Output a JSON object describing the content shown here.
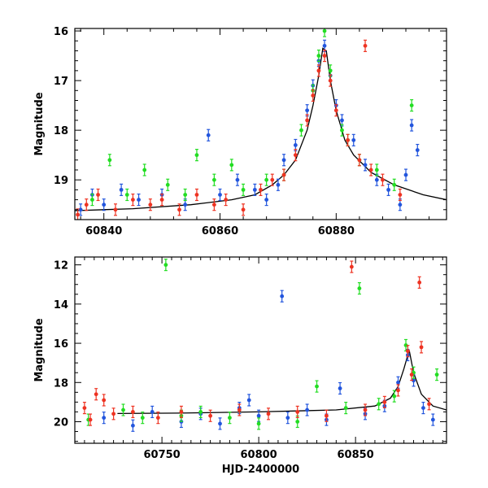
{
  "chart_data": [
    {
      "type": "scatter",
      "panel": "top",
      "xlabel": "",
      "ylabel": "Magnitude",
      "xlim": [
        60835,
        60899
      ],
      "ylim": [
        19.8,
        15.95
      ],
      "y_inverted": true,
      "xticks": [
        60840,
        60860,
        60880
      ],
      "yticks": [
        16,
        17,
        18,
        19
      ],
      "series": [
        {
          "color": "#2255dd",
          "values": [
            [
              60836,
              19.6
            ],
            [
              60838,
              19.3
            ],
            [
              60840,
              19.5
            ],
            [
              60843,
              19.2
            ],
            [
              60846,
              19.4
            ],
            [
              60850,
              19.3
            ],
            [
              60854,
              19.5
            ],
            [
              60858,
              18.1
            ],
            [
              60860,
              19.3
            ],
            [
              60863,
              19.0
            ],
            [
              60866,
              19.2
            ],
            [
              60868,
              19.4
            ],
            [
              60870,
              19.1
            ],
            [
              60871,
              18.6
            ],
            [
              60873,
              18.3
            ],
            [
              60875,
              17.6
            ],
            [
              60876,
              17.1
            ],
            [
              60877,
              16.6
            ],
            [
              60878,
              16.3
            ],
            [
              60879,
              16.9
            ],
            [
              60880,
              17.5
            ],
            [
              60881,
              17.8
            ],
            [
              60883,
              18.2
            ],
            [
              60885,
              18.7
            ],
            [
              60887,
              19.0
            ],
            [
              60889,
              19.2
            ],
            [
              60891,
              19.5
            ],
            [
              60892,
              18.9
            ],
            [
              60893,
              17.9
            ],
            [
              60894,
              18.4
            ]
          ]
        },
        {
          "color": "#22dd22",
          "values": [
            [
              60838,
              19.4
            ],
            [
              60841,
              18.6
            ],
            [
              60844,
              19.3
            ],
            [
              60847,
              18.8
            ],
            [
              60851,
              19.1
            ],
            [
              60854,
              19.3
            ],
            [
              60856,
              18.5
            ],
            [
              60859,
              19.0
            ],
            [
              60862,
              18.7
            ],
            [
              60864,
              19.2
            ],
            [
              60868,
              19.0
            ],
            [
              60871,
              18.9
            ],
            [
              60874,
              18.0
            ],
            [
              60876,
              17.2
            ],
            [
              60877,
              16.5
            ],
            [
              60878,
              16.0
            ],
            [
              60879,
              16.8
            ],
            [
              60881,
              18.0
            ],
            [
              60882,
              18.2
            ],
            [
              60884,
              18.6
            ],
            [
              60887,
              18.8
            ],
            [
              60890,
              19.1
            ],
            [
              60893,
              17.5
            ]
          ]
        },
        {
          "color": "#ee3322",
          "values": [
            [
              60835.5,
              19.7
            ],
            [
              60837,
              19.5
            ],
            [
              60839,
              19.3
            ],
            [
              60842,
              19.6
            ],
            [
              60845,
              19.4
            ],
            [
              60848,
              19.5
            ],
            [
              60850,
              19.4
            ],
            [
              60853,
              19.6
            ],
            [
              60856,
              19.3
            ],
            [
              60859,
              19.5
            ],
            [
              60861,
              19.4
            ],
            [
              60864,
              19.6
            ],
            [
              60867,
              19.2
            ],
            [
              60869,
              19.0
            ],
            [
              60871,
              18.9
            ],
            [
              60873,
              18.5
            ],
            [
              60875,
              17.8
            ],
            [
              60876,
              17.3
            ],
            [
              60877,
              16.8
            ],
            [
              60878,
              16.5
            ],
            [
              60879,
              17.0
            ],
            [
              60880,
              17.6
            ],
            [
              60882,
              18.2
            ],
            [
              60884,
              18.6
            ],
            [
              60885,
              16.3
            ],
            [
              60886,
              18.8
            ],
            [
              60888,
              19.0
            ],
            [
              60891,
              19.3
            ]
          ]
        }
      ],
      "model_curve": [
        [
          60835,
          19.62
        ],
        [
          60845,
          19.58
        ],
        [
          60855,
          19.5
        ],
        [
          60862,
          19.4
        ],
        [
          60866,
          19.3
        ],
        [
          60869,
          19.1
        ],
        [
          60871,
          18.9
        ],
        [
          60873,
          18.6
        ],
        [
          60875,
          18.0
        ],
        [
          60876,
          17.5
        ],
        [
          60877,
          16.9
        ],
        [
          60877.7,
          16.35
        ],
        [
          60878.3,
          16.4
        ],
        [
          60879,
          17.0
        ],
        [
          60880,
          17.6
        ],
        [
          60881.5,
          18.2
        ],
        [
          60883,
          18.5
        ],
        [
          60886,
          18.85
        ],
        [
          60890,
          19.1
        ],
        [
          60895,
          19.3
        ],
        [
          60899,
          19.4
        ]
      ]
    },
    {
      "type": "scatter",
      "panel": "bottom",
      "xlabel": "HJD-2400000",
      "ylabel": "Magnitude",
      "xlim": [
        60705,
        60897
      ],
      "ylim": [
        21.1,
        11.6
      ],
      "y_inverted": true,
      "xticks": [
        60750,
        60800,
        60850
      ],
      "yticks": [
        12,
        14,
        16,
        18,
        20
      ],
      "series": [
        {
          "color": "#2255dd",
          "values": [
            [
              60720,
              19.8
            ],
            [
              60735,
              20.2
            ],
            [
              60745,
              19.5
            ],
            [
              60760,
              20.0
            ],
            [
              60770,
              19.6
            ],
            [
              60780,
              20.1
            ],
            [
              60790,
              19.3
            ],
            [
              60795,
              18.9
            ],
            [
              60800,
              19.7
            ],
            [
              60812,
              13.6
            ],
            [
              60815,
              19.8
            ],
            [
              60825,
              19.4
            ],
            [
              60835,
              19.9
            ],
            [
              60842,
              18.3
            ],
            [
              60855,
              19.6
            ],
            [
              60865,
              19.2
            ],
            [
              60872,
              18.0
            ],
            [
              60877,
              16.6
            ],
            [
              60880,
              17.9
            ],
            [
              60885,
              19.3
            ],
            [
              60890,
              19.9
            ]
          ]
        },
        {
          "color": "#22dd22",
          "values": [
            [
              60712,
              19.9
            ],
            [
              60730,
              19.4
            ],
            [
              60740,
              19.8
            ],
            [
              60752,
              12.0
            ],
            [
              60760,
              19.7
            ],
            [
              60770,
              19.5
            ],
            [
              60785,
              19.8
            ],
            [
              60800,
              20.1
            ],
            [
              60820,
              20.0
            ],
            [
              60830,
              18.2
            ],
            [
              60845,
              19.3
            ],
            [
              60852,
              13.2
            ],
            [
              60862,
              19.1
            ],
            [
              60870,
              18.7
            ],
            [
              60876,
              16.1
            ],
            [
              60880,
              17.5
            ],
            [
              60892,
              17.6
            ]
          ]
        },
        {
          "color": "#ee3322",
          "values": [
            [
              60710,
              19.3
            ],
            [
              60713,
              19.9
            ],
            [
              60716,
              18.6
            ],
            [
              60720,
              18.9
            ],
            [
              60725,
              19.6
            ],
            [
              60735,
              19.5
            ],
            [
              60748,
              19.8
            ],
            [
              60760,
              19.5
            ],
            [
              60775,
              19.7
            ],
            [
              60790,
              19.4
            ],
            [
              60805,
              19.6
            ],
            [
              60820,
              19.5
            ],
            [
              60835,
              19.7
            ],
            [
              60848,
              12.1
            ],
            [
              60855,
              19.4
            ],
            [
              60865,
              19.0
            ],
            [
              60872,
              18.4
            ],
            [
              60877,
              16.4
            ],
            [
              60879,
              17.6
            ],
            [
              60883,
              12.9
            ],
            [
              60884,
              16.2
            ],
            [
              60888,
              19.1
            ]
          ]
        }
      ],
      "model_curve": [
        [
          60727,
          19.58
        ],
        [
          60760,
          19.56
        ],
        [
          60800,
          19.5
        ],
        [
          60840,
          19.4
        ],
        [
          60860,
          19.2
        ],
        [
          60868,
          18.8
        ],
        [
          60872,
          18.2
        ],
        [
          60875,
          17.3
        ],
        [
          60877.7,
          16.35
        ],
        [
          60880,
          17.5
        ],
        [
          60884,
          18.6
        ],
        [
          60890,
          19.2
        ],
        [
          60897,
          19.4
        ]
      ]
    }
  ]
}
